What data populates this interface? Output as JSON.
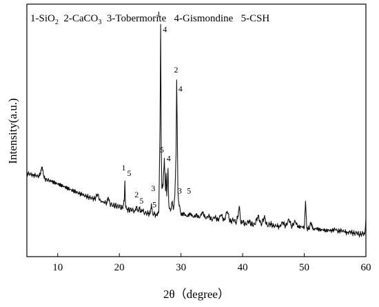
{
  "chart_data": {
    "type": "line",
    "xlabel": "2θ（degree）",
    "ylabel": "Intensity(a.u.)",
    "xlim": [
      5,
      60
    ],
    "ylim": [
      0,
      100
    ],
    "xticks": [
      "10",
      "20",
      "30",
      "40",
      "50",
      "60"
    ],
    "xtick_values": [
      10,
      20,
      30,
      40,
      50,
      60
    ],
    "y_ticks_labeled": false,
    "grid": false,
    "legend_text": {
      "part1": "1-SiO",
      "part1_sub": "2",
      "part2": "  2-CaCO",
      "part2_sub": "3",
      "part3": "  3-Tobermorite   4-Gismondine   5-CSH"
    },
    "series": [
      {
        "x": [
          5.0,
          6.0,
          7.0,
          7.5,
          7.8,
          8.2,
          9.0,
          10.0,
          11.0,
          12.0,
          13.0,
          14.0,
          15.0,
          16.0,
          16.5,
          16.8,
          17.2,
          18.0,
          18.2,
          18.5,
          19.0,
          20.0,
          20.5,
          20.8,
          20.9,
          21.0,
          21.2,
          21.5,
          22.0,
          22.5,
          22.8,
          23.0,
          23.2,
          23.5,
          23.8,
          24.0,
          24.5,
          25.0,
          25.2,
          25.4,
          25.6,
          26.0,
          26.4,
          26.6,
          26.7,
          26.8,
          26.9,
          27.1,
          27.3,
          27.5,
          27.6,
          27.7,
          27.9,
          28.0,
          28.1,
          28.3,
          28.6,
          28.8,
          29.0,
          29.2,
          29.3,
          29.4,
          29.5,
          29.6,
          29.8,
          30.0,
          30.5,
          31.0,
          31.5,
          32.0,
          32.5,
          33.0,
          33.5,
          34.0,
          34.5,
          35.0,
          35.5,
          36.0,
          36.5,
          37.0,
          37.5,
          38.0,
          38.5,
          39.0,
          39.5,
          39.7,
          40.0,
          40.5,
          41.0,
          41.5,
          42.0,
          42.5,
          43.0,
          43.5,
          44.0,
          44.5,
          45.0,
          45.5,
          46.0,
          46.5,
          47.0,
          47.5,
          48.0,
          48.5,
          49.0,
          49.5,
          50.0,
          50.2,
          50.4,
          50.8,
          51.0,
          51.5,
          52.0,
          52.5,
          53.0,
          53.5,
          54.0,
          54.5,
          55.0,
          55.5,
          56.0,
          56.5,
          57.0,
          57.5,
          58.0,
          58.5,
          59.0,
          59.5,
          59.8,
          60.0
        ],
        "y": [
          33.0,
          32.4,
          31.8,
          35.5,
          31.0,
          30.6,
          29.8,
          28.8,
          27.8,
          26.6,
          25.6,
          24.5,
          23.6,
          22.8,
          24.8,
          22.3,
          21.8,
          21.2,
          23.5,
          20.8,
          20.4,
          19.8,
          19.4,
          22.0,
          30.0,
          20.5,
          18.8,
          18.6,
          18.5,
          18.2,
          19.6,
          18.0,
          19.5,
          17.6,
          18.6,
          17.4,
          17.2,
          17.0,
          21.0,
          17.2,
          16.8,
          16.6,
          17.5,
          52.0,
          92.0,
          42.0,
          27.0,
          28.0,
          39.0,
          26.0,
          33.0,
          24.0,
          35.0,
          22.0,
          19.0,
          18.0,
          22.0,
          19.0,
          24.0,
          40.0,
          70.0,
          50.0,
          26.0,
          22.0,
          20.0,
          16.6,
          17.0,
          15.8,
          17.2,
          15.6,
          16.5,
          15.4,
          17.8,
          15.0,
          16.2,
          14.6,
          15.8,
          14.4,
          16.6,
          14.4,
          18.0,
          13.8,
          14.6,
          13.6,
          19.6,
          13.4,
          13.6,
          13.0,
          14.0,
          12.8,
          12.7,
          16.4,
          12.6,
          15.6,
          12.3,
          13.0,
          12.2,
          12.0,
          12.0,
          13.6,
          12.0,
          14.8,
          11.8,
          14.2,
          11.6,
          12.0,
          11.4,
          22.0,
          11.2,
          11.0,
          13.6,
          10.8,
          11.2,
          10.6,
          10.6,
          10.4,
          10.4,
          10.2,
          11.0,
          10.0,
          10.4,
          9.8,
          9.6,
          9.8,
          9.2,
          9.4,
          8.8,
          9.2,
          8.8,
          15.0
        ]
      }
    ],
    "peak_labels": [
      {
        "text": "1",
        "x": 20.7,
        "y": 34.2
      },
      {
        "text": "5",
        "x": 21.6,
        "y": 32.0
      },
      {
        "text": "2",
        "x": 22.8,
        "y": 23.5
      },
      {
        "text": "5",
        "x": 23.6,
        "y": 21.0
      },
      {
        "text": "3",
        "x": 25.5,
        "y": 26.0
      },
      {
        "text": "5",
        "x": 25.7,
        "y": 19.5
      },
      {
        "text": "1",
        "x": 26.4,
        "y": 95.0
      },
      {
        "text": "4",
        "x": 27.4,
        "y": 89.0
      },
      {
        "text": "5",
        "x": 26.9,
        "y": 41.3
      },
      {
        "text": "4",
        "x": 28.0,
        "y": 37.8
      },
      {
        "text": "2",
        "x": 29.2,
        "y": 73.0
      },
      {
        "text": "4",
        "x": 29.9,
        "y": 65.5
      },
      {
        "text": "3",
        "x": 29.8,
        "y": 25.0
      },
      {
        "text": "5",
        "x": 31.3,
        "y": 25.0
      }
    ]
  }
}
